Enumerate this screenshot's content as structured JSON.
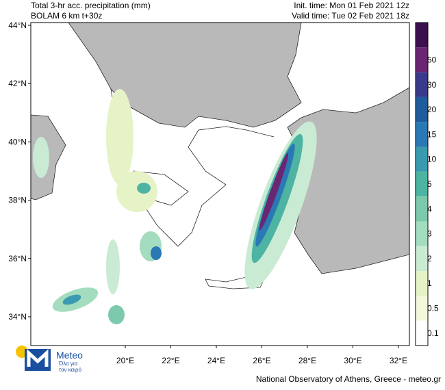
{
  "header": {
    "title": "Total 3-hr acc. precipitation (mm)",
    "model": "BOLAM 6 km t+30z",
    "init_time": "Init. time: Mon 01 Feb 2021 12z",
    "valid_time": "Valid time: Tue 02 Feb 2021 18z"
  },
  "map": {
    "latitude_labels": [
      "44°N",
      "42°N",
      "40°N",
      "38°N",
      "36°N",
      "34°N"
    ],
    "longitude_labels": [
      "20°E",
      "22°E",
      "24°E",
      "26°E",
      "28°E",
      "30°E",
      "32°E"
    ]
  },
  "legend": {
    "top_color": "#3c0f4f",
    "levels": [
      {
        "label": "50",
        "color": "#6a2672"
      },
      {
        "label": "30",
        "color": "#3a3a8c"
      },
      {
        "label": "20",
        "color": "#1f5c9c"
      },
      {
        "label": "15",
        "color": "#2a78b4"
      },
      {
        "label": "10",
        "color": "#3a9bb0"
      },
      {
        "label": "5",
        "color": "#4db3a3"
      },
      {
        "label": "4",
        "color": "#7ccaab"
      },
      {
        "label": "3",
        "color": "#a3dcbe"
      },
      {
        "label": "2",
        "color": "#c9ead3"
      },
      {
        "label": "1",
        "color": "#e6f3c6"
      },
      {
        "label": "0.5",
        "color": "#f3f8db"
      },
      {
        "label": "0.1",
        "color": "#ffffff"
      }
    ]
  },
  "logo": {
    "name": "Meteo",
    "tagline_lines": [
      "Όλα για",
      "τον καιρό"
    ]
  },
  "footer": "National Observatory of Athens, Greece - meteo.gr"
}
